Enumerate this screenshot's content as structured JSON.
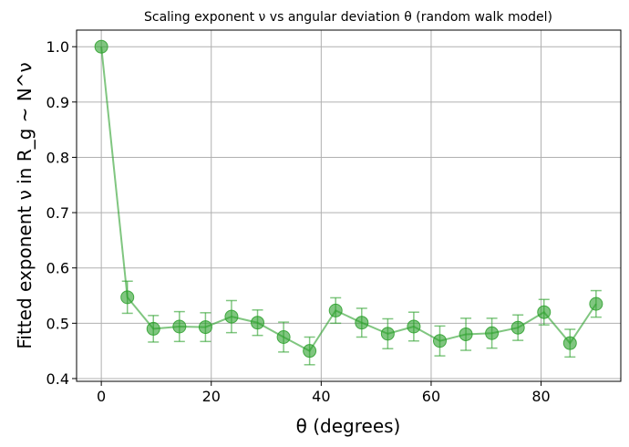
{
  "chart_data": {
    "type": "scatter",
    "title": "Scaling exponent ν vs angular deviation θ (random walk model)",
    "xlabel": "θ (degrees)",
    "ylabel": "Fitted exponent ν in R_g ~ N^ν",
    "xlim": [
      -4.5,
      94.5
    ],
    "ylim": [
      0.395,
      1.03
    ],
    "xticks": [
      0,
      20,
      40,
      60,
      80
    ],
    "yticks": [
      0.4,
      0.5,
      0.6,
      0.7,
      0.8,
      0.9,
      1.0
    ],
    "xtick_labels": [
      "0",
      "20",
      "40",
      "60",
      "80"
    ],
    "ytick_labels": [
      "0.4",
      "0.5",
      "0.6",
      "0.7",
      "0.8",
      "0.9",
      "1.0"
    ],
    "grid": true,
    "color": "#2ca02c",
    "series": [
      {
        "x": [
          0,
          4.74,
          9.47,
          14.21,
          18.95,
          23.68,
          28.42,
          33.16,
          37.89,
          42.63,
          47.37,
          52.11,
          56.84,
          61.58,
          66.32,
          71.05,
          75.79,
          80.53,
          85.26,
          90
        ],
        "y": [
          1.0,
          0.547,
          0.49,
          0.494,
          0.493,
          0.512,
          0.501,
          0.475,
          0.45,
          0.523,
          0.501,
          0.481,
          0.494,
          0.468,
          0.48,
          0.482,
          0.492,
          0.52,
          0.464,
          0.535
        ],
        "yerr": [
          0,
          0.029,
          0.024,
          0.027,
          0.026,
          0.029,
          0.023,
          0.027,
          0.025,
          0.023,
          0.026,
          0.027,
          0.026,
          0.027,
          0.029,
          0.027,
          0.023,
          0.023,
          0.025,
          0.024
        ]
      }
    ]
  }
}
